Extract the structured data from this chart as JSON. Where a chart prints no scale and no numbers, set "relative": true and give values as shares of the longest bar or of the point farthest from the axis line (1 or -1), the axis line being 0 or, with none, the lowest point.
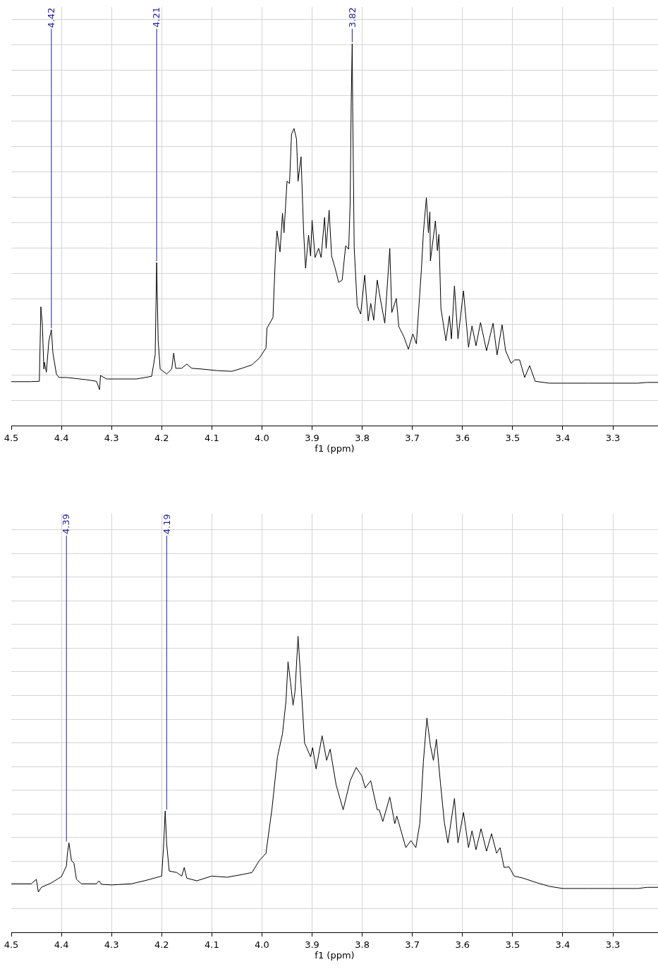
{
  "chart_data": [
    {
      "type": "line",
      "relative": true,
      "xlabel": "f1 (ppm)",
      "xlim": [
        4.5,
        3.21
      ],
      "xticks": [
        4.5,
        4.4,
        4.3,
        4.2,
        4.1,
        {
          "value": 4.0,
          "label": "4.0"
        },
        3.9,
        3.8,
        3.7,
        3.6,
        3.5,
        3.4,
        3.3
      ],
      "grid": true,
      "tick_labels": "x",
      "marker": "none",
      "line_style": "solid",
      "annotations": [
        {
          "text": "4.42",
          "x": 4.42,
          "y": 0.251
        },
        {
          "text": "4.21",
          "x": 4.21,
          "y": 0.427
        },
        {
          "text": "3.82",
          "x": 3.82,
          "y": 1.0
        }
      ],
      "series": [
        {
          "color": "#000000",
          "x": [
            4.5,
            4.46,
            4.444,
            4.441,
            4.438,
            4.435,
            4.434,
            4.43,
            4.425,
            4.42,
            4.417,
            4.41,
            4.405,
            4.39,
            4.35,
            4.33,
            4.324,
            4.322,
            4.31,
            4.25,
            4.22,
            4.213,
            4.21,
            4.207,
            4.203,
            4.19,
            4.18,
            4.176,
            4.172,
            4.16,
            4.15,
            4.14,
            4.12,
            4.09,
            4.06,
            4.04,
            4.02,
            4.005,
            3.992,
            3.99,
            3.978,
            3.973,
            3.97,
            3.964,
            3.959,
            3.956,
            3.95,
            3.945,
            3.941,
            3.936,
            3.931,
            3.928,
            3.922,
            3.917,
            3.913,
            3.907,
            3.903,
            3.9,
            3.894,
            3.887,
            3.882,
            3.875,
            3.872,
            3.866,
            3.861,
            3.854,
            3.847,
            3.84,
            3.833,
            3.827,
            3.824,
            3.822,
            3.82,
            3.819,
            3.816,
            3.81,
            3.803,
            3.795,
            3.788,
            3.783,
            3.777,
            3.77,
            3.764,
            3.755,
            3.745,
            3.741,
            3.732,
            3.727,
            3.717,
            3.708,
            3.699,
            3.692,
            3.682,
            3.678,
            3.672,
            3.668,
            3.665,
            3.664,
            3.654,
            3.65,
            3.647,
            3.643,
            3.633,
            3.626,
            3.622,
            3.616,
            3.609,
            3.598,
            3.588,
            3.581,
            3.573,
            3.564,
            3.552,
            3.539,
            3.531,
            3.521,
            3.514,
            3.503,
            3.496,
            3.486,
            3.476,
            3.466,
            3.455,
            3.427,
            3.4,
            3.35,
            3.3,
            3.25,
            3.232,
            3.21
          ],
          "values": [
            0.115,
            0.115,
            0.116,
            0.311,
            0.264,
            0.148,
            0.166,
            0.14,
            0.222,
            0.251,
            0.19,
            0.135,
            0.126,
            0.126,
            0.12,
            0.116,
            0.094,
            0.131,
            0.122,
            0.122,
            0.129,
            0.185,
            0.427,
            0.222,
            0.148,
            0.135,
            0.148,
            0.19,
            0.15,
            0.15,
            0.161,
            0.15,
            0.148,
            0.144,
            0.142,
            0.15,
            0.159,
            0.177,
            0.203,
            0.255,
            0.283,
            0.449,
            0.51,
            0.455,
            0.556,
            0.505,
            0.64,
            0.634,
            0.763,
            0.778,
            0.75,
            0.64,
            0.704,
            0.51,
            0.412,
            0.499,
            0.444,
            0.538,
            0.44,
            0.464,
            0.44,
            0.545,
            0.464,
            0.564,
            0.444,
            0.412,
            0.375,
            0.381,
            0.471,
            0.462,
            0.584,
            0.843,
            1.0,
            0.834,
            0.466,
            0.314,
            0.292,
            0.394,
            0.274,
            0.32,
            0.276,
            0.381,
            0.333,
            0.268,
            0.464,
            0.296,
            0.333,
            0.259,
            0.233,
            0.2,
            0.24,
            0.214,
            0.407,
            0.505,
            0.597,
            0.505,
            0.56,
            0.431,
            0.536,
            0.458,
            0.501,
            0.307,
            0.222,
            0.287,
            0.227,
            0.366,
            0.227,
            0.353,
            0.205,
            0.261,
            0.209,
            0.27,
            0.196,
            0.268,
            0.185,
            0.264,
            0.196,
            0.163,
            0.172,
            0.172,
            0.126,
            0.157,
            0.116,
            0.111,
            0.111,
            0.111,
            0.111,
            0.111,
            0.113,
            0.113
          ]
        }
      ]
    },
    {
      "type": "line",
      "relative": true,
      "xlabel": "f1 (ppm)",
      "xlim": [
        4.5,
        3.21
      ],
      "xticks": [
        4.5,
        4.4,
        4.3,
        4.2,
        4.1,
        {
          "value": 4.0,
          "label": "4.0"
        },
        3.9,
        3.8,
        3.7,
        3.6,
        3.5,
        3.4,
        3.3
      ],
      "grid": true,
      "tick_labels": "x",
      "marker": "none",
      "line_style": "solid",
      "annotations": [
        {
          "text": "4.39",
          "x": 4.39,
          "y": 0.302
        },
        {
          "text": "4.19",
          "x": 4.19,
          "y": 0.41
        }
      ],
      "series": [
        {
          "color": "#000000",
          "x": [
            4.5,
            4.46,
            4.45,
            4.446,
            4.44,
            4.42,
            4.4,
            4.39,
            4.388,
            4.385,
            4.38,
            4.375,
            4.37,
            4.36,
            4.33,
            4.325,
            4.32,
            4.3,
            4.26,
            4.23,
            4.2,
            4.196,
            4.193,
            4.19,
            4.185,
            4.17,
            4.16,
            4.155,
            4.15,
            4.13,
            4.1,
            4.07,
            4.04,
            4.02,
            4.005,
            3.992,
            3.98,
            3.969,
            3.959,
            3.952,
            3.948,
            3.943,
            3.938,
            3.934,
            3.928,
            3.922,
            3.915,
            3.903,
            3.899,
            3.892,
            3.88,
            3.871,
            3.864,
            3.852,
            3.838,
            3.824,
            3.812,
            3.801,
            3.794,
            3.783,
            3.77,
            3.766,
            3.759,
            3.745,
            3.735,
            3.731,
            3.713,
            3.703,
            3.693,
            3.685,
            3.678,
            3.671,
            3.664,
            3.658,
            3.652,
            3.644,
            3.636,
            3.629,
            3.616,
            3.609,
            3.598,
            3.588,
            3.581,
            3.573,
            3.563,
            3.552,
            3.542,
            3.532,
            3.525,
            3.517,
            3.507,
            3.497,
            3.479,
            3.451,
            3.426,
            3.4,
            3.35,
            3.3,
            3.25,
            3.232,
            3.21
          ],
          "values": [
            0.164,
            0.164,
            0.179,
            0.136,
            0.152,
            0.167,
            0.188,
            0.224,
            0.267,
            0.302,
            0.243,
            0.233,
            0.179,
            0.164,
            0.164,
            0.174,
            0.162,
            0.16,
            0.164,
            0.176,
            0.19,
            0.298,
            0.41,
            0.298,
            0.207,
            0.202,
            0.19,
            0.219,
            0.183,
            0.174,
            0.19,
            0.186,
            0.195,
            0.202,
            0.243,
            0.267,
            0.417,
            0.593,
            0.671,
            0.783,
            0.914,
            0.845,
            0.767,
            0.814,
            1.0,
            0.838,
            0.64,
            0.593,
            0.624,
            0.552,
            0.664,
            0.581,
            0.619,
            0.498,
            0.414,
            0.512,
            0.557,
            0.529,
            0.488,
            0.512,
            0.414,
            0.414,
            0.374,
            0.457,
            0.367,
            0.393,
            0.286,
            0.31,
            0.286,
            0.369,
            0.576,
            0.724,
            0.631,
            0.581,
            0.652,
            0.505,
            0.369,
            0.302,
            0.452,
            0.302,
            0.405,
            0.286,
            0.343,
            0.279,
            0.35,
            0.274,
            0.333,
            0.267,
            0.286,
            0.219,
            0.221,
            0.19,
            0.183,
            0.167,
            0.155,
            0.148,
            0.148,
            0.148,
            0.148,
            0.152,
            0.152
          ]
        }
      ]
    }
  ]
}
